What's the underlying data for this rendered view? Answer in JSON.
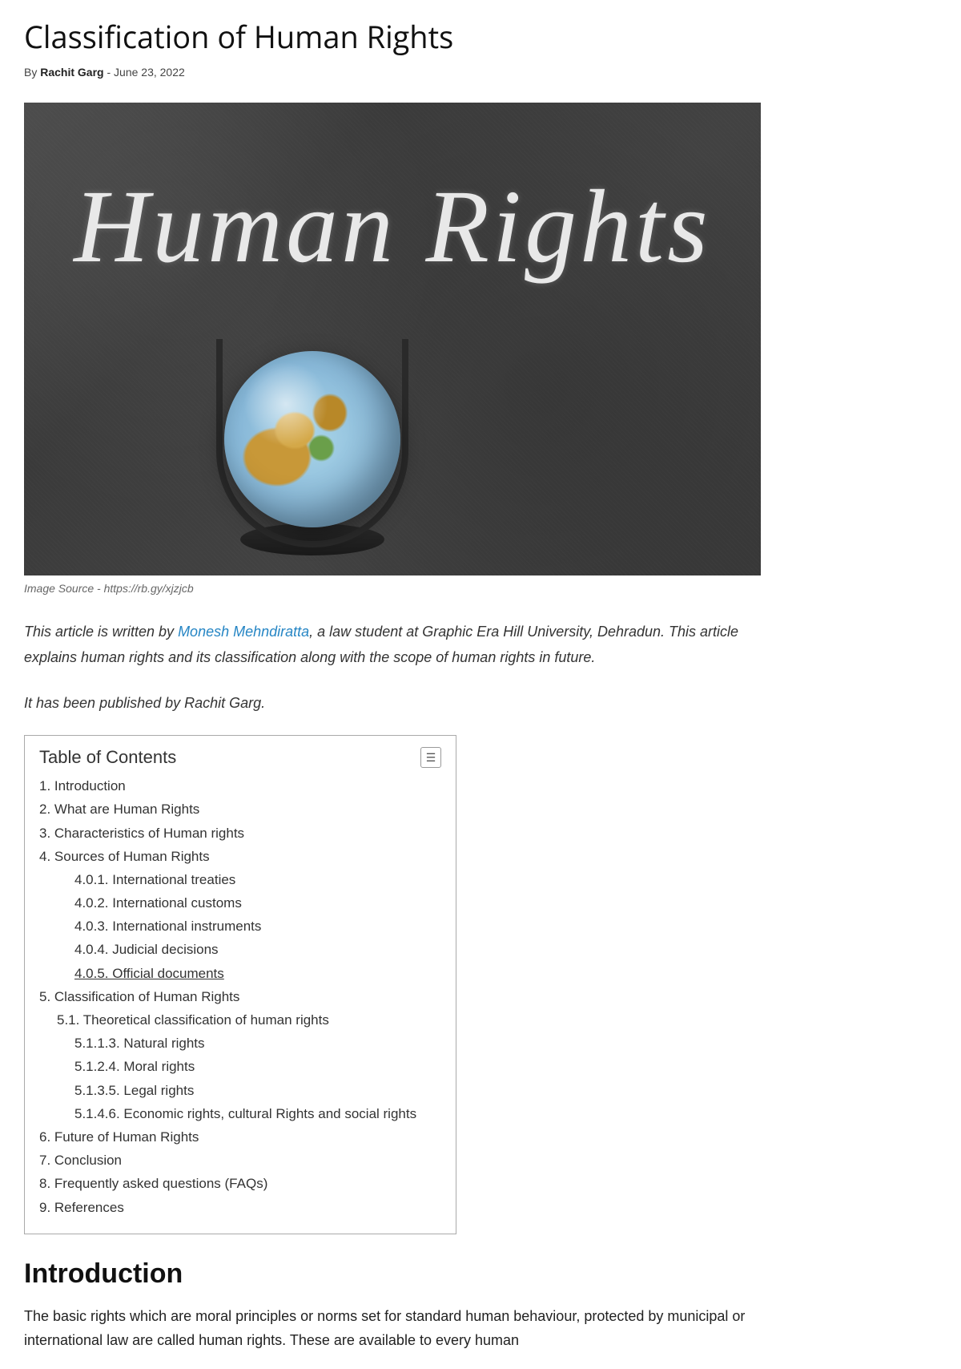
{
  "article": {
    "title": "Classification of Human Rights",
    "byline_prefix": "By",
    "author": "Rachit Garg",
    "byline_sep": "-",
    "date": "June 23, 2022"
  },
  "hero": {
    "chalk_text": "Human Rights",
    "caption": "Image Source - https://rb.gy/xjzjcb"
  },
  "intro": {
    "prefix": "This article is written by ",
    "link_text": "Monesh Mehndiratta",
    "suffix": ", a law student at Graphic Era Hill University, Dehradun. This article explains human rights and its classification along with the scope of human rights in future.",
    "published_by": "It has been published by Rachit Garg."
  },
  "toc": {
    "title": "Table of Contents",
    "toggle_glyph": "☰",
    "items": [
      {
        "num": "1.",
        "label": "Introduction",
        "level": 0
      },
      {
        "num": "2.",
        "label": "What are Human Rights",
        "level": 0
      },
      {
        "num": "3.",
        "label": "Characteristics of Human rights",
        "level": 0
      },
      {
        "num": "4.",
        "label": "Sources of Human Rights",
        "level": 0
      },
      {
        "num": "4.0.1.",
        "label": "International treaties",
        "level": 2
      },
      {
        "num": "4.0.2.",
        "label": "International customs",
        "level": 2
      },
      {
        "num": "4.0.3.",
        "label": "International instruments",
        "level": 2
      },
      {
        "num": "4.0.4.",
        "label": "Judicial decisions",
        "level": 2
      },
      {
        "num": "4.0.5.",
        "label": "Official documents ",
        "level": 2,
        "underlined": true
      },
      {
        "num": "5.",
        "label": "Classification of Human Rights",
        "level": 0
      },
      {
        "num": "5.1.",
        "label": "Theoretical classification of human rights",
        "level": 1
      },
      {
        "num": "5.1.1.3.",
        "label": "Natural rights",
        "level": 2
      },
      {
        "num": "5.1.2.4.",
        "label": "Moral rights",
        "level": 2
      },
      {
        "num": "5.1.3.5.",
        "label": "Legal rights",
        "level": 2
      },
      {
        "num": "5.1.4.6.",
        "label": "Economic rights, cultural Rights and social rights",
        "level": 2
      },
      {
        "num": "6.",
        "label": "Future of Human Rights",
        "level": 0
      },
      {
        "num": "7.",
        "label": "Conclusion",
        "level": 0
      },
      {
        "num": "8.",
        "label": "Frequently asked questions (FAQs)",
        "level": 0
      },
      {
        "num": "9.",
        "label": "References",
        "level": 0
      }
    ]
  },
  "section": {
    "heading": "Introduction",
    "body": "The basic rights which are moral principles or norms set for standard human behaviour, protected by municipal or international law are called human rights. These are available to every human"
  }
}
